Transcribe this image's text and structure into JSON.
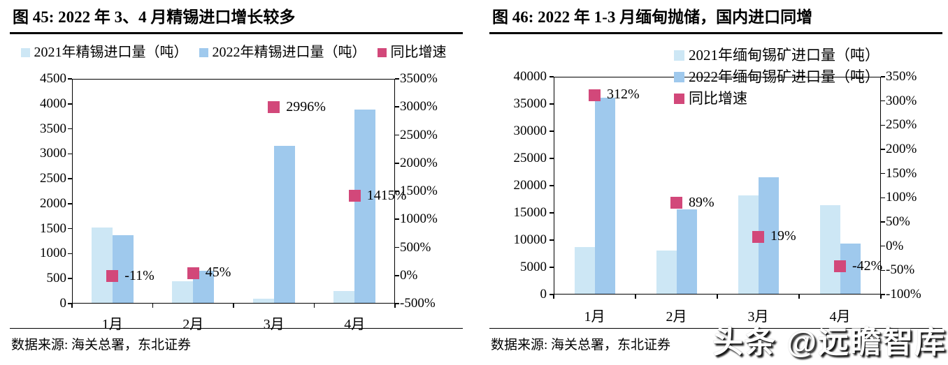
{
  "watermark": "头条 @远瞻智库",
  "colors": {
    "bar_2021": "#cde7f5",
    "bar_2022": "#9fc9ed",
    "marker": "#d2487a",
    "axis_line": "#000000"
  },
  "chart_data": [
    {
      "type": "bar",
      "title": "图 45:  2022 年 3、4 月精锡进口增长较多",
      "legend_position": "top-center-horizontal",
      "categories": [
        "1月",
        "2月",
        "3月",
        "4月"
      ],
      "series": [
        {
          "name": "2021年精锡进口量（吨）",
          "kind": "bar",
          "axis": "left",
          "values": [
            1520,
            450,
            100,
            250
          ]
        },
        {
          "name": "2022年精锡进口量（吨）",
          "kind": "bar",
          "axis": "left",
          "values": [
            1370,
            650,
            3160,
            3890
          ]
        },
        {
          "name": "同比增速",
          "kind": "point",
          "axis": "right",
          "values": [
            -11,
            45,
            2996,
            1415
          ],
          "labels": [
            "-11%",
            "45%",
            "2996%",
            "1415%"
          ]
        }
      ],
      "left_axis": {
        "min": 0,
        "max": 4500,
        "tick_labels": [
          "0",
          "500",
          "1000",
          "1500",
          "2000",
          "2500",
          "3000",
          "3500",
          "4000",
          "4500"
        ]
      },
      "right_axis": {
        "min": -500,
        "max": 3500,
        "tick_labels": [
          "-500%",
          "0%",
          "500%",
          "1000%",
          "1500%",
          "2000%",
          "2500%",
          "3000%",
          "3500%"
        ]
      },
      "source": "数据来源: 海关总署，东北证券"
    },
    {
      "type": "bar",
      "title": "图 46:  2022 年 1-3 月缅甸抛储，国内进口同增",
      "legend_position": "top-right-vertical",
      "categories": [
        "1月",
        "2月",
        "3月",
        "4月"
      ],
      "series": [
        {
          "name": "2021年缅甸锡矿进口量（吨）",
          "kind": "bar",
          "axis": "left",
          "values": [
            8700,
            8100,
            18200,
            16400
          ]
        },
        {
          "name": "2022年缅甸锡矿进口量（吨）",
          "kind": "bar",
          "axis": "left",
          "values": [
            36200,
            15600,
            21600,
            9400
          ]
        },
        {
          "name": "同比增速",
          "kind": "point",
          "axis": "right",
          "values": [
            312,
            89,
            19,
            -42
          ],
          "labels": [
            "312%",
            "89%",
            "19%",
            "-42%"
          ]
        }
      ],
      "left_axis": {
        "min": 0,
        "max": 40000,
        "tick_labels": [
          "0",
          "5000",
          "10000",
          "15000",
          "20000",
          "25000",
          "30000",
          "35000",
          "40000"
        ]
      },
      "right_axis": {
        "min": -100,
        "max": 350,
        "tick_labels": [
          "-100%",
          "-50%",
          "0%",
          "50%",
          "100%",
          "150%",
          "200%",
          "250%",
          "300%",
          "350%"
        ]
      },
      "source": "数据来源: 海关总署，东北证券"
    }
  ]
}
